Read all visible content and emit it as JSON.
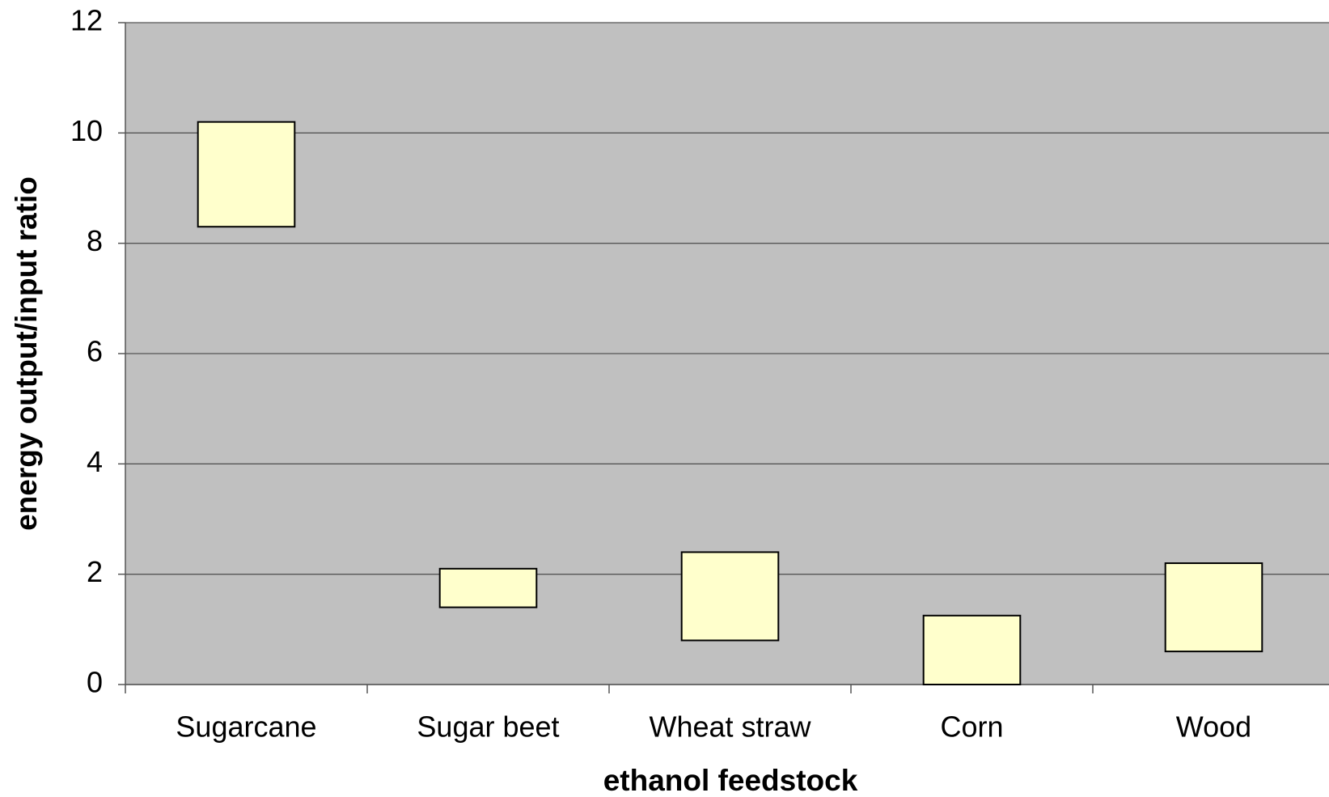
{
  "chart_data": {
    "type": "floating_bar",
    "x_label": "ethanol feedstock",
    "y_label": "energy output/input ratio",
    "categories": [
      "Sugarcane",
      "Sugar beet",
      "Wheat straw",
      "Corn",
      "Wood"
    ],
    "low": [
      8.3,
      1.4,
      0.8,
      0,
      0.6
    ],
    "high": [
      10.2,
      2.1,
      2.4,
      1.25,
      2.2
    ],
    "color": "#ffffcc",
    "plot_background": "#c0c0c0",
    "ylim": [
      0,
      12
    ],
    "yticks": [
      0,
      2,
      4,
      6,
      8,
      10,
      12
    ],
    "grid": true
  }
}
